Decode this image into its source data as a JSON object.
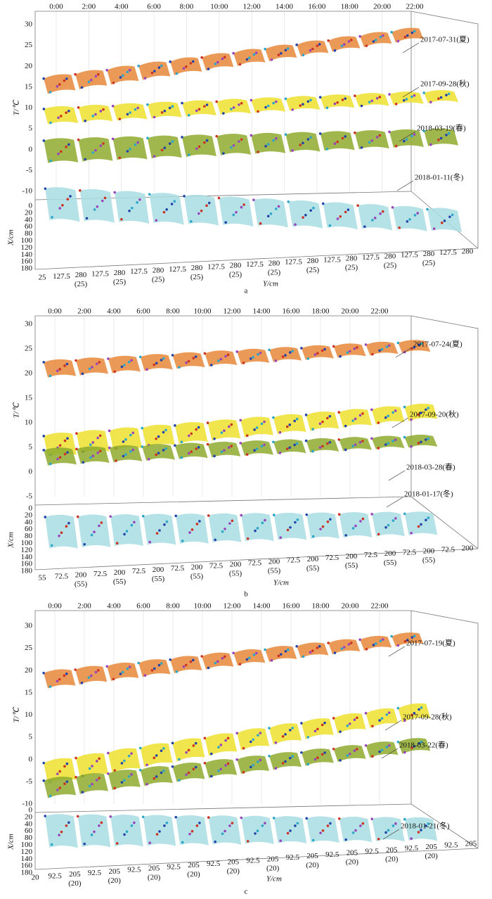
{
  "panels": [
    {
      "label": "a",
      "time_ticks": [
        "0:00",
        "2:00",
        "4:00",
        "6:00",
        "8:00",
        "10:00",
        "12:00",
        "14:00",
        "16:00",
        "18:00",
        "20:00",
        "22:00"
      ],
      "t_axis_label": "T/℃",
      "t_ticks": [
        30,
        25,
        20,
        15,
        10,
        5,
        0,
        -5,
        -10
      ],
      "x_axis_label": "X/cm",
      "x_ticks": [
        0,
        20,
        40,
        60,
        80,
        100,
        120,
        140,
        160,
        180
      ],
      "y_axis_label": "Y/cm",
      "y_ticks": [
        [
          "25"
        ],
        [
          "127.5"
        ],
        [
          "280",
          "(25)"
        ],
        [
          "127.5"
        ],
        [
          "280",
          "(25)"
        ],
        [
          "127.5"
        ],
        [
          "280",
          "(25)"
        ],
        [
          "127.5"
        ],
        [
          "280",
          "(25)"
        ],
        [
          "127.5"
        ],
        [
          "280",
          "(25)"
        ],
        [
          "127.5"
        ],
        [
          "280",
          "(25)"
        ],
        [
          "127.5"
        ],
        [
          "280",
          "(25)"
        ],
        [
          "127.5"
        ],
        [
          "280",
          "(25)"
        ],
        [
          "127.5"
        ],
        [
          "280",
          "(25)"
        ],
        [
          "127.5"
        ],
        [
          "280",
          "(25)"
        ],
        [
          "127.5"
        ],
        [
          "280"
        ]
      ],
      "dates": [
        "2017-07-31(夏)",
        "2017-09-28(秋)",
        "2018-03-19(春)",
        "2018-01-11(冬)"
      ]
    },
    {
      "label": "b",
      "time_ticks": [
        "0:00",
        "2:00",
        "4:00",
        "6:00",
        "8:00",
        "10:00",
        "12:00",
        "14:00",
        "16:00",
        "18:00",
        "20:00",
        "22:00"
      ],
      "t_axis_label": "T/℃",
      "t_ticks": [
        30,
        25,
        20,
        15,
        10,
        5,
        0,
        -5
      ],
      "x_axis_label": "X/cm",
      "x_ticks": [
        0,
        20,
        40,
        60,
        80,
        100,
        120,
        140,
        160,
        180
      ],
      "y_axis_label": "Y/cm",
      "y_ticks": [
        [
          "55"
        ],
        [
          "72.5"
        ],
        [
          "200",
          "(55)"
        ],
        [
          "72.5"
        ],
        [
          "200",
          "(55)"
        ],
        [
          "72.5"
        ],
        [
          "200",
          "(55)"
        ],
        [
          "72.5"
        ],
        [
          "200",
          "(55)"
        ],
        [
          "72.5"
        ],
        [
          "200",
          "(55)"
        ],
        [
          "72.5"
        ],
        [
          "200",
          "(55)"
        ],
        [
          "72.5"
        ],
        [
          "200",
          "(55)"
        ],
        [
          "72.5"
        ],
        [
          "200",
          "(55)"
        ],
        [
          "72.5"
        ],
        [
          "200",
          "(55)"
        ],
        [
          "72.5"
        ],
        [
          "200",
          "(55)"
        ],
        [
          "72.5"
        ],
        [
          "200"
        ]
      ],
      "dates": [
        "2017-07-24(夏)",
        "2017-09-20(秋)",
        "2018-03-28(春)",
        "2018-01-17(冬)"
      ]
    },
    {
      "label": "c",
      "time_ticks": [
        "0:00",
        "2:00",
        "4:00",
        "6:00",
        "8:00",
        "10:00",
        "12:00",
        "14:00",
        "16:00",
        "18:00",
        "20:00",
        "22:00"
      ],
      "t_axis_label": "T/℃",
      "t_ticks": [
        30,
        25,
        20,
        15,
        10,
        5,
        0,
        -5,
        -10
      ],
      "x_axis_label": "X/cm",
      "x_ticks": [
        0,
        20,
        40,
        60,
        80,
        100,
        120,
        140,
        160,
        180
      ],
      "y_axis_label": "Y/cm",
      "y_ticks": [
        [
          "20"
        ],
        [
          "92.5"
        ],
        [
          "205",
          "(20)"
        ],
        [
          "92.5"
        ],
        [
          "205",
          "(20)"
        ],
        [
          "92.5"
        ],
        [
          "205",
          "(20)"
        ],
        [
          "92.5"
        ],
        [
          "205",
          "(20)"
        ],
        [
          "92.5"
        ],
        [
          "205",
          "(20)"
        ],
        [
          "92.5"
        ],
        [
          "205",
          "(20)"
        ],
        [
          "92.5"
        ],
        [
          "205",
          "(20)"
        ],
        [
          "92.5"
        ],
        [
          "205",
          "(20)"
        ],
        [
          "92.5"
        ],
        [
          "205",
          "(20)"
        ],
        [
          "92.5"
        ],
        [
          "205",
          "(20)"
        ],
        [
          "92.5"
        ],
        [
          "205"
        ]
      ],
      "dates": [
        "2017-07-19(夏)",
        "2017-09-28(秋)",
        "2018-03-22(春)",
        "2018-01-21(冬)"
      ]
    }
  ]
}
